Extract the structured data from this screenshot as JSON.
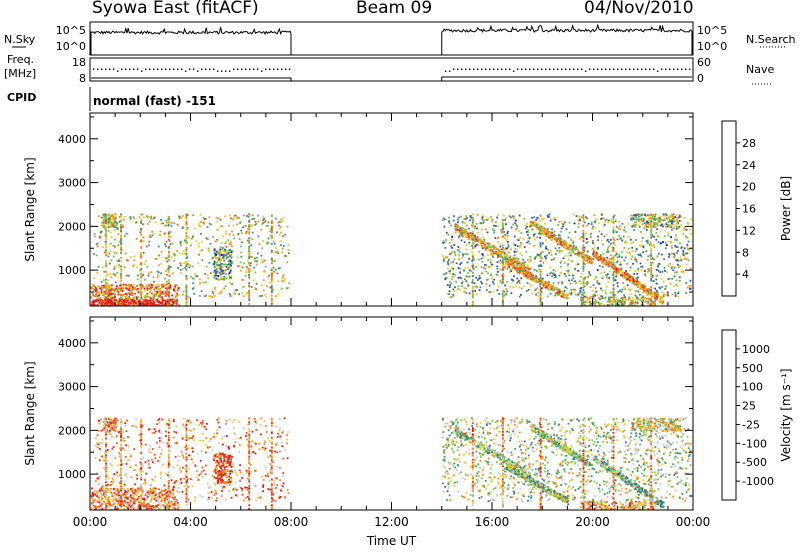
{
  "header": {
    "station": "Syowa East (fitACF)",
    "beam": "Beam 09",
    "date": "04/Nov/2010"
  },
  "chart_data": [
    {
      "type": "line",
      "title": "",
      "left_labels": [
        "N.Sky"
      ],
      "right_labels": [
        "N.Search"
      ],
      "left_ticks": [
        "10^5",
        "10^0"
      ],
      "right_ticks": [
        "10^5",
        "10^0"
      ],
      "data_gap_hours": [
        8,
        14
      ],
      "note": "noise level traces"
    },
    {
      "type": "scatter",
      "left_labels": [
        "Freq.",
        "[MHz]"
      ],
      "left_ticks": [
        "18",
        "8"
      ],
      "right_labels": [
        "Nave"
      ],
      "right_ticks": [
        "60",
        "0"
      ],
      "freq_mhz_approx": 13.5,
      "data_gap_hours": [
        8,
        14
      ]
    },
    {
      "type": "table",
      "label": "CPID",
      "value": "normal (fast) -151"
    },
    {
      "type": "heatmap",
      "ylabel": "Slant Range [km]",
      "yticks": [
        "1000",
        "2000",
        "3000",
        "4000"
      ],
      "ylim": [
        180,
        4590
      ],
      "colorbar_label": "Power [dB]",
      "colorbar_ticks": [
        "4",
        "8",
        "12",
        "16",
        "20",
        "24",
        "28"
      ],
      "colors": [
        "#0000ff",
        "#2d57a8",
        "#3e8f7a",
        "#70be4c",
        "#f2c81e",
        "#f79020",
        "#ef5820",
        "#e8141a"
      ],
      "data_gap_hours": [
        8,
        14
      ]
    },
    {
      "type": "heatmap",
      "ylabel": "Slant Range [km]",
      "yticks": [
        "1000",
        "2000",
        "3000",
        "4000"
      ],
      "ylim": [
        180,
        4590
      ],
      "colorbar_label": "Velocity [m s⁻¹]",
      "colorbar_ticks": [
        "1000",
        "500",
        "100",
        "25",
        "-25",
        "-100",
        "-500",
        "-1000"
      ],
      "colors": [
        "#2a3ec8",
        "#2f6e9a",
        "#3a9a74",
        "#7acc46",
        "#c8c8c8",
        "#f3c82c",
        "#f58a1e",
        "#ef4a1c",
        "#e41818"
      ],
      "data_gap_hours": [
        8,
        14
      ]
    }
  ],
  "x_axis": {
    "label": "Time UT",
    "ticks": [
      "00:00",
      "04:00",
      "08:00",
      "12:00",
      "16:00",
      "20:00",
      "00:00"
    ],
    "range_hours": [
      0,
      24
    ]
  }
}
